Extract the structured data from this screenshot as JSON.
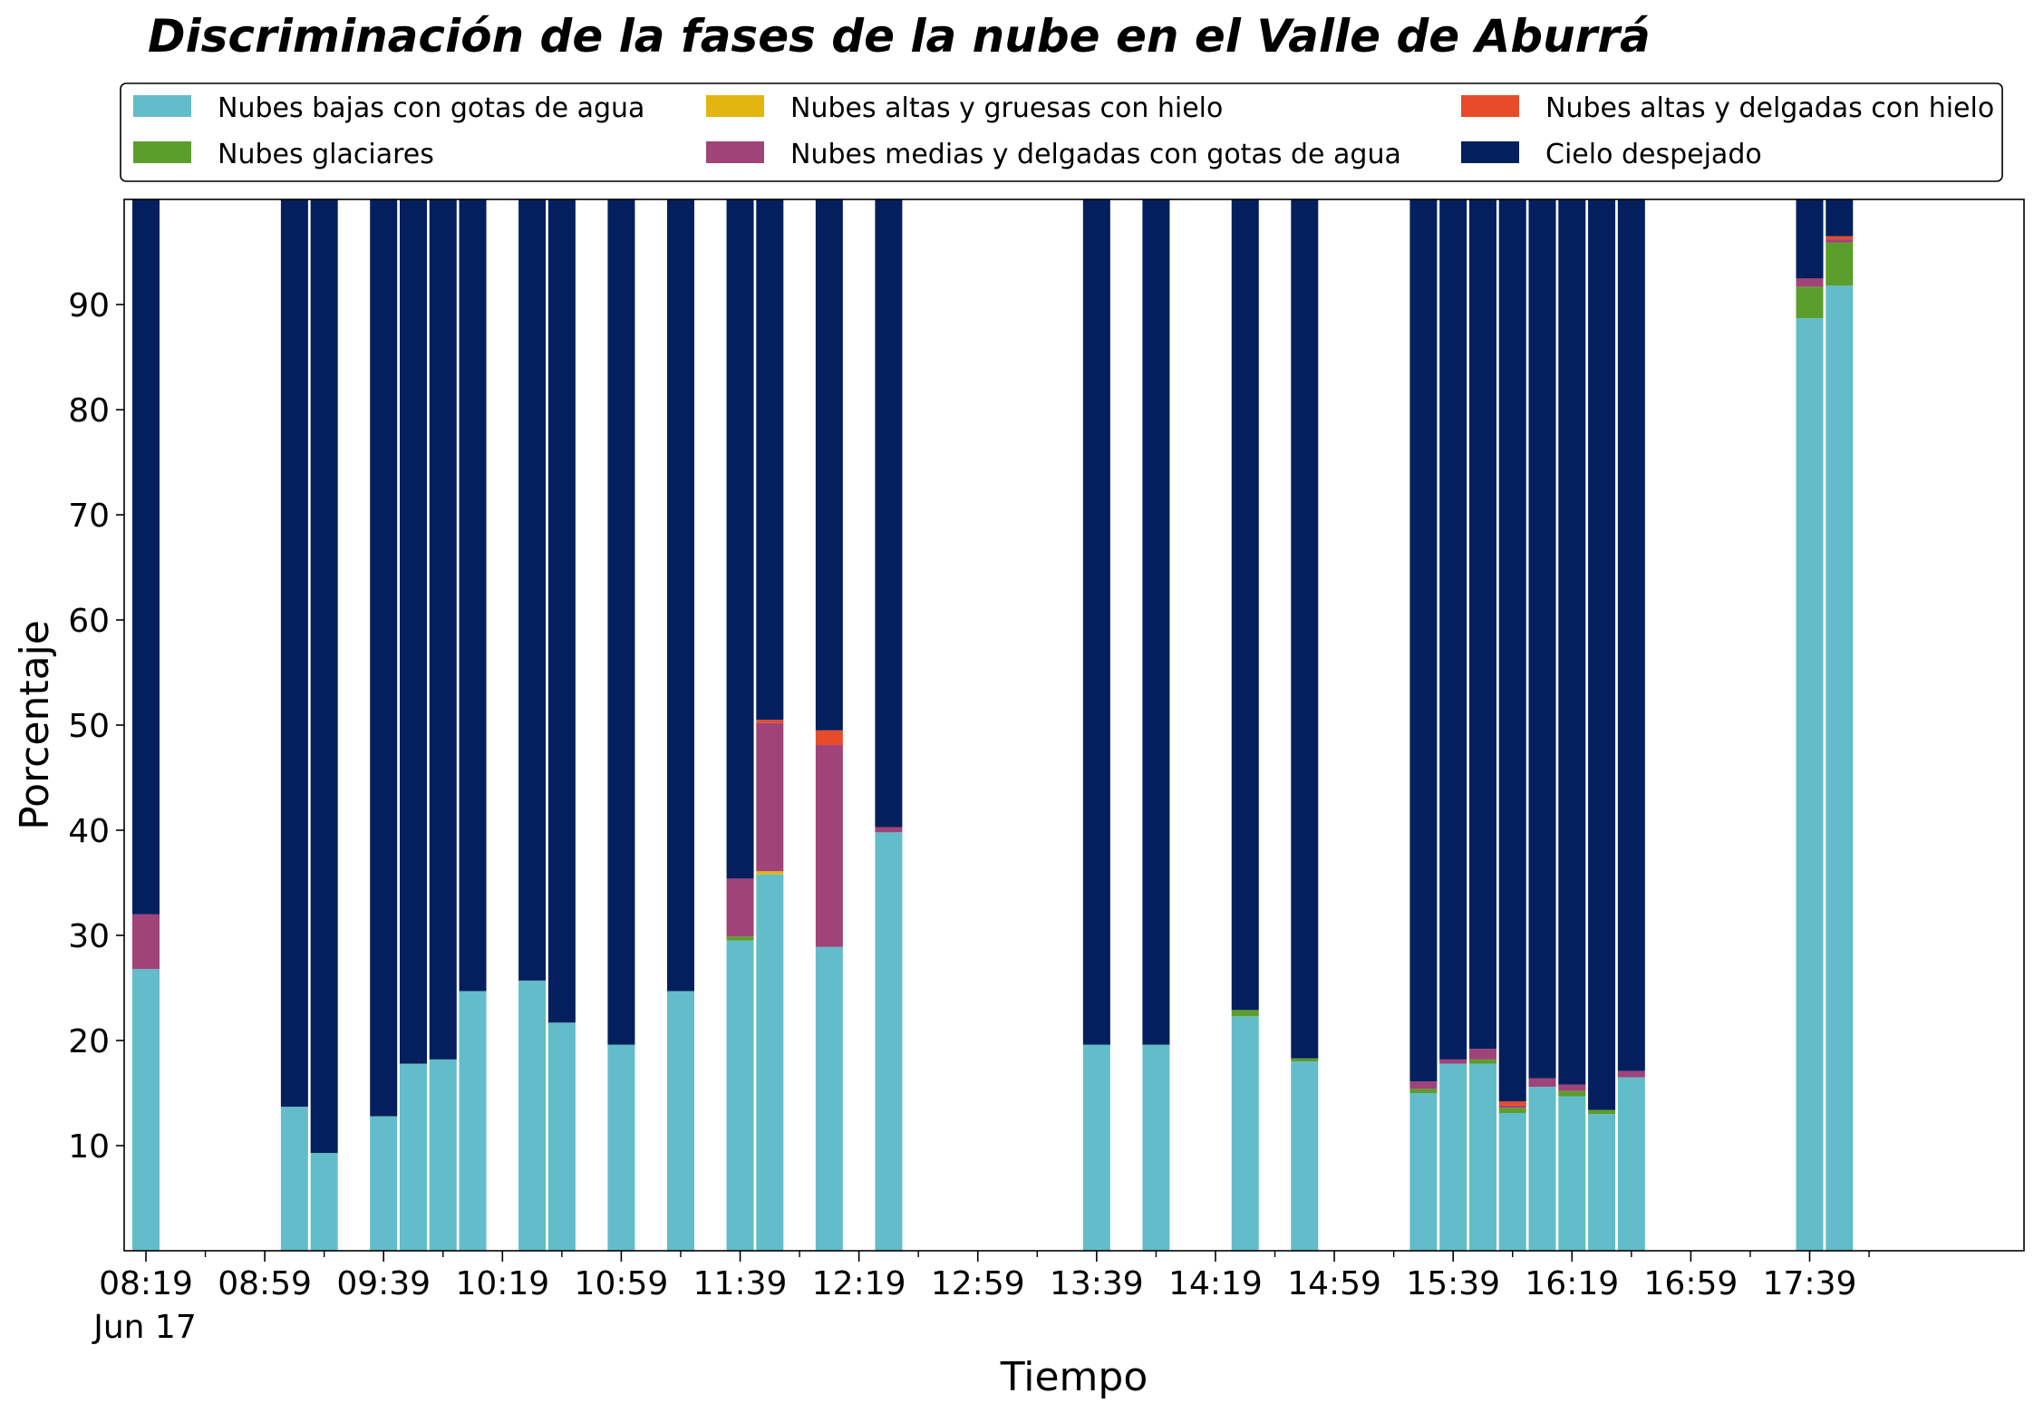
{
  "chart_data": {
    "type": "bar",
    "stacked": true,
    "title": "Discriminación de la fases de la nube en el Valle de Aburrá",
    "xlabel": "Tiempo",
    "ylabel": "Porcentaje",
    "ylim": [
      0,
      100
    ],
    "yticks": [
      "10",
      "20",
      "30",
      "40",
      "50",
      "60",
      "70",
      "80",
      "90"
    ],
    "xticks": [
      "08:19",
      "08:59",
      "09:39",
      "10:19",
      "10:59",
      "11:39",
      "12:19",
      "12:59",
      "13:39",
      "14:19",
      "14:59",
      "15:39",
      "16:19",
      "16:59",
      "17:39"
    ],
    "date_label": "Jun 17",
    "legend_position": "top",
    "grid": false,
    "times": [
      "08:19",
      "09:09",
      "09:19",
      "09:39",
      "09:49",
      "09:59",
      "10:09",
      "10:29",
      "10:39",
      "10:59",
      "11:19",
      "11:39",
      "11:49",
      "12:09",
      "12:29",
      "13:39",
      "13:59",
      "14:29",
      "14:49",
      "15:29",
      "15:39",
      "15:49",
      "15:59",
      "16:09",
      "16:19",
      "16:29",
      "16:39",
      "17:39",
      "17:49"
    ],
    "series": [
      {
        "name": "Nubes bajas con gotas de agua",
        "color": "#63BCC9",
        "values": [
          26.8,
          13.7,
          9.3,
          12.8,
          17.8,
          18.2,
          24.7,
          25.7,
          21.7,
          19.6,
          24.7,
          29.5,
          35.8,
          28.9,
          39.8,
          19.6,
          19.6,
          22.3,
          18.0,
          15.0,
          17.8,
          17.8,
          13.1,
          15.6,
          14.7,
          13.0,
          16.5,
          88.7,
          91.8
        ]
      },
      {
        "name": "Nubes glaciares",
        "color": "#5B9E2B",
        "values": [
          0,
          0,
          0,
          0,
          0,
          0,
          0,
          0,
          0,
          0,
          0,
          0.4,
          0,
          0,
          0,
          0,
          0,
          0.6,
          0.3,
          0.4,
          0,
          0.4,
          0.5,
          0,
          0.5,
          0.4,
          0,
          3.0,
          4.1
        ]
      },
      {
        "name": "Nubes altas y gruesas con hielo",
        "color": "#E3B50F",
        "values": [
          0,
          0,
          0,
          0,
          0,
          0,
          0,
          0,
          0,
          0,
          0,
          0,
          0.3,
          0,
          0,
          0,
          0,
          0,
          0,
          0,
          0,
          0,
          0,
          0,
          0,
          0,
          0,
          0,
          0
        ]
      },
      {
        "name": "Nubes medias y delgadas con gotas de agua",
        "color": "#A04378",
        "values": [
          5.2,
          0,
          0,
          0,
          0,
          0,
          0,
          0,
          0,
          0,
          0,
          5.5,
          14.1,
          19.2,
          0.5,
          0,
          0,
          0,
          0,
          0.7,
          0.4,
          1.0,
          0.2,
          0.8,
          0.6,
          0,
          0.6,
          0.8,
          0.3
        ]
      },
      {
        "name": "Nubes altas y delgadas con hielo",
        "color": "#E74B2A",
        "values": [
          0,
          0,
          0,
          0,
          0,
          0,
          0,
          0,
          0,
          0,
          0,
          0,
          0.3,
          1.4,
          0,
          0,
          0,
          0,
          0,
          0,
          0,
          0,
          0.4,
          0,
          0,
          0,
          0,
          0,
          0.3
        ]
      },
      {
        "name": "Cielo despejado",
        "color": "#031F5D",
        "values": [
          68.0,
          86.3,
          90.7,
          87.2,
          82.2,
          81.8,
          75.3,
          74.3,
          78.3,
          80.4,
          75.3,
          64.6,
          49.5,
          50.5,
          59.7,
          80.4,
          80.4,
          77.1,
          81.7,
          83.9,
          81.8,
          80.8,
          85.8,
          83.6,
          84.2,
          86.6,
          82.9,
          7.5,
          3.5
        ]
      }
    ]
  }
}
